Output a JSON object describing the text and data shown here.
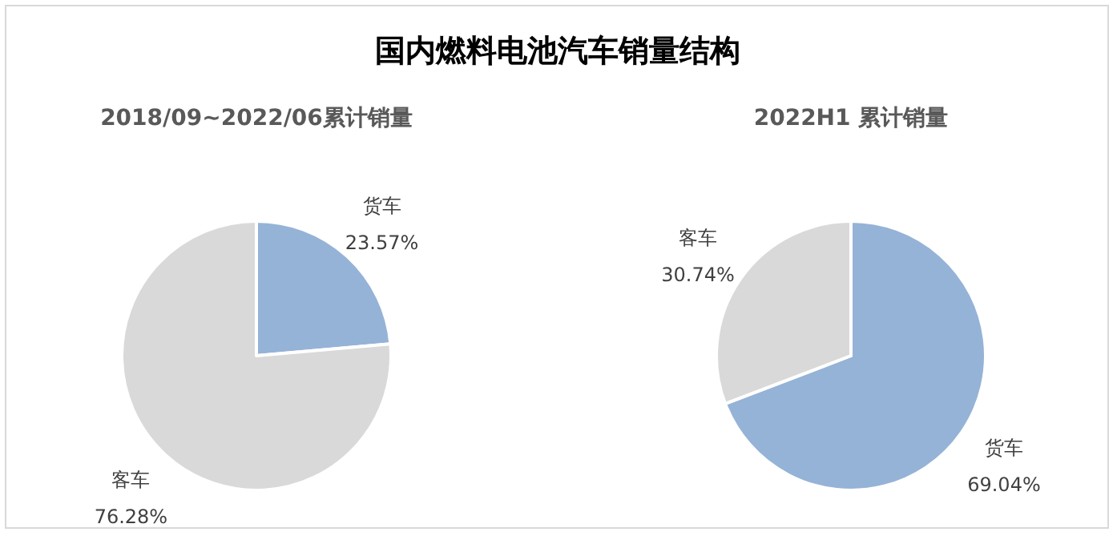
{
  "chart_data": [
    {
      "type": "pie",
      "title": "国内燃料电池汽车销量结构",
      "subtitle": "2018/09~2022/06累计销量",
      "categories": [
        "货车",
        "客车"
      ],
      "values": [
        23.57,
        76.28
      ],
      "colors": [
        "#95b3d7",
        "#d9d9d9"
      ],
      "value_labels": [
        "23.57%",
        "76.28%"
      ]
    },
    {
      "type": "pie",
      "subtitle": "2022H1 累计销量",
      "categories": [
        "货车",
        "客车"
      ],
      "values": [
        69.04,
        30.74
      ],
      "colors": [
        "#95b3d7",
        "#d9d9d9"
      ],
      "value_labels": [
        "69.04%",
        "30.74%"
      ]
    }
  ]
}
